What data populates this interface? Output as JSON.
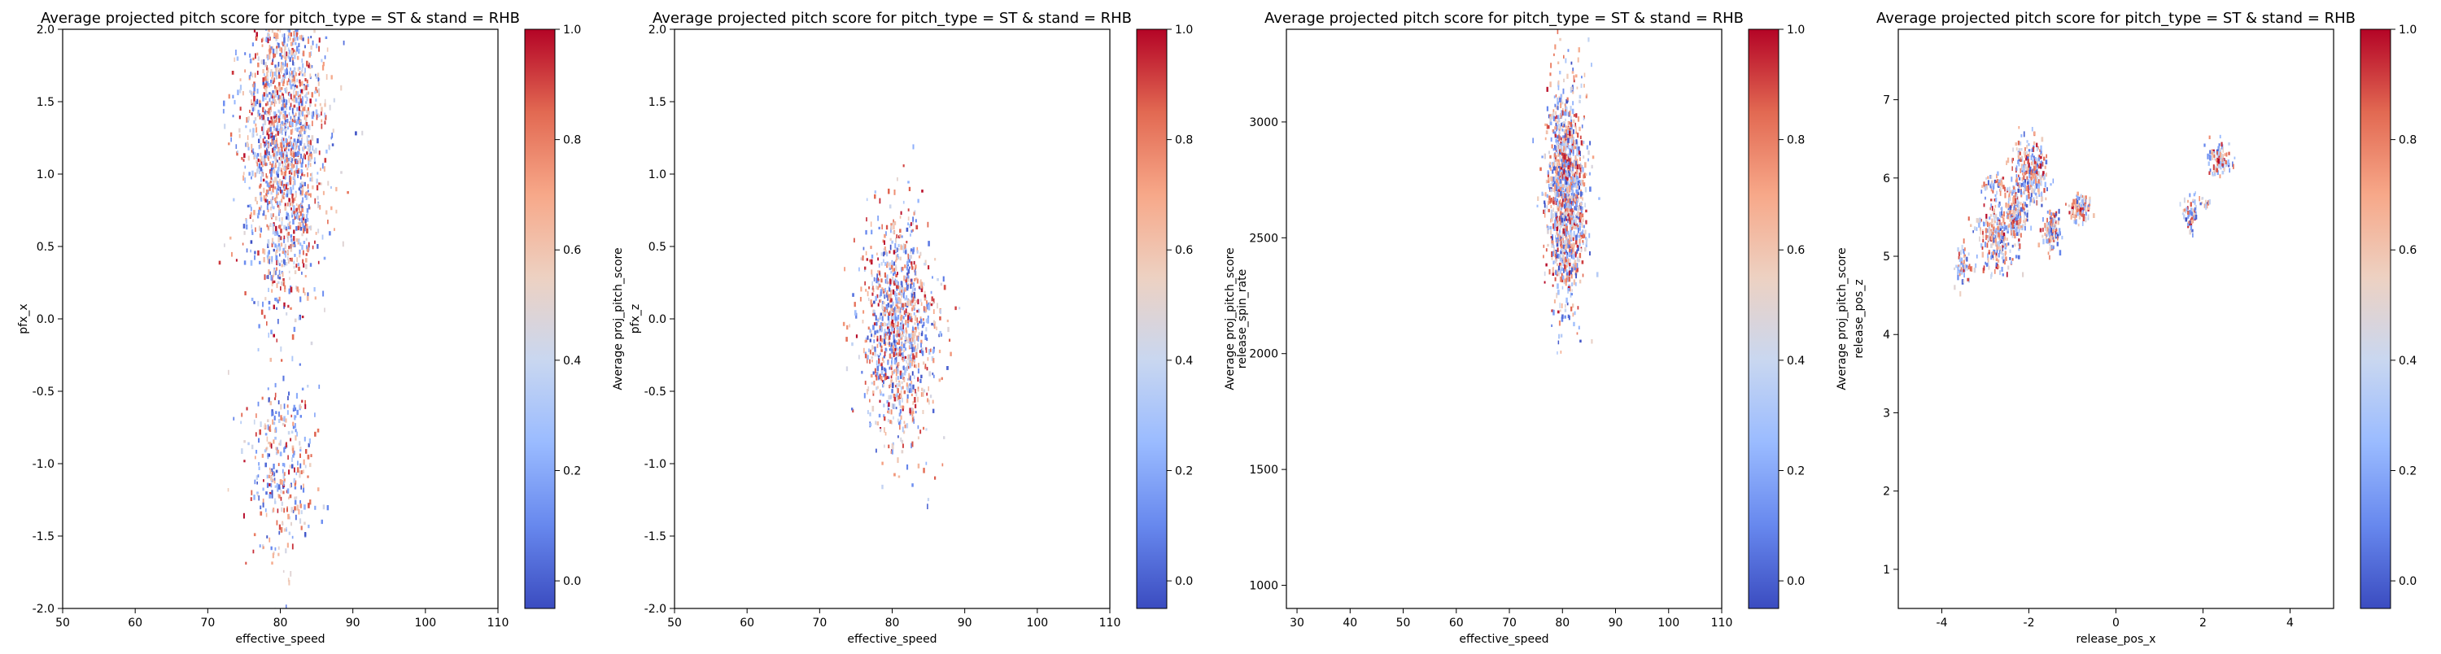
{
  "colormap": {
    "name": "coolwarm",
    "stops": [
      "#3b4cc0",
      "#6788ee",
      "#9abbff",
      "#c9d7f0",
      "#edd1c2",
      "#f7a889",
      "#e26952",
      "#b40426"
    ]
  },
  "chart_data": [
    {
      "type": "heatmap",
      "title": "Average projected pitch score for pitch_type = ST & stand = RHB",
      "xlabel": "effective_speed",
      "ylabel": "pfx_x",
      "colorbar_label": "Average proj_pitch_score",
      "xlim": [
        50,
        110
      ],
      "ylim": [
        -2.0,
        2.0
      ],
      "xticks": [
        "50",
        "60",
        "70",
        "80",
        "90",
        "100",
        "110"
      ],
      "yticks": [
        "-2.0",
        "-1.5",
        "-1.0",
        "-0.5",
        "0.0",
        "0.5",
        "1.0",
        "1.5",
        "2.0"
      ],
      "colorbar_range": [
        -0.05,
        1.0
      ],
      "colorbar_ticks": [
        "0.0",
        "0.2",
        "0.4",
        "0.6",
        "0.8",
        "1.0"
      ],
      "clusters": [
        {
          "x_center": 80.5,
          "y_center": 1.35,
          "x_spread": 2.8,
          "y_spread": 0.45,
          "count": 1400
        },
        {
          "x_center": 80.5,
          "y_center": 0.55,
          "x_spread": 2.6,
          "y_spread": 0.3,
          "count": 250
        },
        {
          "x_center": 80.0,
          "y_center": -1.05,
          "x_spread": 2.2,
          "y_spread": 0.3,
          "count": 320
        }
      ]
    },
    {
      "type": "heatmap",
      "title": "Average projected pitch score for pitch_type = ST & stand = RHB",
      "xlabel": "effective_speed",
      "ylabel": "pfx_z",
      "colorbar_label": "Average proj_pitch_score",
      "xlim": [
        50,
        110
      ],
      "ylim": [
        -2.0,
        2.0
      ],
      "xticks": [
        "50",
        "60",
        "70",
        "80",
        "90",
        "100",
        "110"
      ],
      "yticks": [
        "-2.0",
        "-1.5",
        "-1.0",
        "-0.5",
        "0.0",
        "0.5",
        "1.0",
        "1.5",
        "2.0"
      ],
      "colorbar_range": [
        -0.05,
        1.0
      ],
      "colorbar_ticks": [
        "0.0",
        "0.2",
        "0.4",
        "0.6",
        "0.8",
        "1.0"
      ],
      "clusters": [
        {
          "x_center": 81.0,
          "y_center": -0.05,
          "x_spread": 2.5,
          "y_spread": 0.38,
          "count": 1100
        }
      ]
    },
    {
      "type": "heatmap",
      "title": "Average projected pitch score for pitch_type = ST & stand = RHB",
      "xlabel": "effective_speed",
      "ylabel": "release_spin_rate",
      "colorbar_label": "Average proj_pitch_score",
      "xlim": [
        28,
        110
      ],
      "ylim": [
        900,
        3400
      ],
      "xticks": [
        "30",
        "40",
        "50",
        "60",
        "70",
        "80",
        "90",
        "100",
        "110"
      ],
      "yticks": [
        "1000",
        "1500",
        "2000",
        "2500",
        "3000"
      ],
      "colorbar_range": [
        -0.05,
        1.0
      ],
      "colorbar_ticks": [
        "0.0",
        "0.2",
        "0.4",
        "0.6",
        "0.8",
        "1.0"
      ],
      "clusters": [
        {
          "x_center": 80.5,
          "y_center": 2720,
          "x_spread": 1.8,
          "y_spread": 230,
          "count": 1300
        }
      ]
    },
    {
      "type": "heatmap",
      "title": "Average projected pitch score for pitch_type = ST & stand = RHB",
      "xlabel": "release_pos_x",
      "ylabel": "release_pos_z",
      "colorbar_label": "Average proj_pitch_score",
      "xlim": [
        -5,
        5
      ],
      "ylim": [
        0.5,
        7.9
      ],
      "xticks": [
        "-4",
        "-2",
        "0",
        "2",
        "4"
      ],
      "yticks": [
        "1",
        "2",
        "3",
        "4",
        "5",
        "6",
        "7"
      ],
      "colorbar_range": [
        -0.05,
        1.0
      ],
      "colorbar_ticks": [
        "0.0",
        "0.2",
        "0.4",
        "0.6",
        "0.8",
        "1.0"
      ],
      "clusters": [
        {
          "x_center": -3.55,
          "y_center": 4.9,
          "x_spread": 0.1,
          "y_spread": 0.12,
          "count": 60
        },
        {
          "x_center": -2.75,
          "y_center": 5.3,
          "x_spread": 0.25,
          "y_spread": 0.22,
          "count": 260
        },
        {
          "x_center": -2.3,
          "y_center": 5.6,
          "x_spread": 0.15,
          "y_spread": 0.15,
          "count": 160
        },
        {
          "x_center": -2.0,
          "y_center": 6.1,
          "x_spread": 0.2,
          "y_spread": 0.2,
          "count": 260
        },
        {
          "x_center": -1.5,
          "y_center": 5.35,
          "x_spread": 0.1,
          "y_spread": 0.12,
          "count": 120
        },
        {
          "x_center": -0.85,
          "y_center": 5.65,
          "x_spread": 0.12,
          "y_spread": 0.08,
          "count": 120
        },
        {
          "x_center": -2.85,
          "y_center": 5.95,
          "x_spread": 0.15,
          "y_spread": 0.06,
          "count": 40
        },
        {
          "x_center": 1.7,
          "y_center": 5.55,
          "x_spread": 0.08,
          "y_spread": 0.1,
          "count": 60
        },
        {
          "x_center": 2.35,
          "y_center": 6.25,
          "x_spread": 0.14,
          "y_spread": 0.1,
          "count": 110
        },
        {
          "x_center": 2.0,
          "y_center": 5.7,
          "x_spread": 0.1,
          "y_spread": 0.04,
          "count": 15
        }
      ]
    }
  ]
}
